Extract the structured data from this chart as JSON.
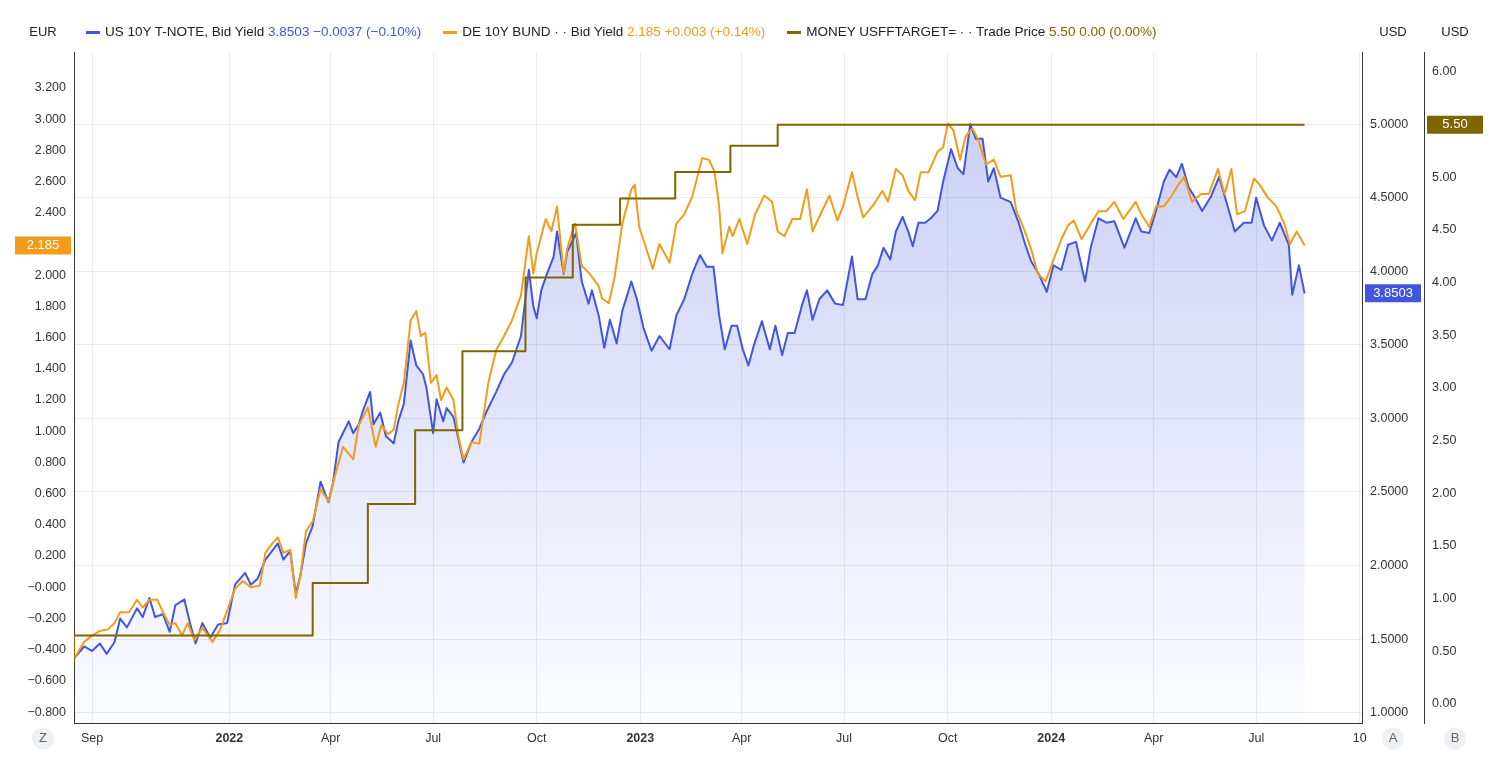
{
  "chart_data": {
    "type": "line",
    "ylabel": "EUR",
    "y2label": "USD",
    "y3label": "USD",
    "legend": "top left",
    "grid": true,
    "annotations": [
      "3.8503 −0.0037 (−0.10%)",
      "2.185 +0.003 (+0.14%)",
      "5.50 0.00 (0.00%)",
      "Z",
      "A",
      "B",
      "3.8503",
      "2.185",
      "5.50"
    ],
    "xlim": [
      "2021-08-16",
      "2024-10-03"
    ],
    "xticks": [
      {
        "value": "2021-09-01",
        "label": "Sep"
      },
      {
        "value": "2022-01-01",
        "label": "2022"
      },
      {
        "value": "2022-04-01",
        "label": "Apr"
      },
      {
        "value": "2022-07-01",
        "label": "Jul"
      },
      {
        "value": "2022-10-01",
        "label": "Oct"
      },
      {
        "value": "2023-01-01",
        "label": "2023"
      },
      {
        "value": "2023-04-01",
        "label": "Apr"
      },
      {
        "value": "2023-07-01",
        "label": "Jul"
      },
      {
        "value": "2023-10-01",
        "label": "Oct"
      },
      {
        "value": "2024-01-01",
        "label": "2024"
      },
      {
        "value": "2024-04-01",
        "label": "Apr"
      },
      {
        "value": "2024-07-01",
        "label": "Jul"
      },
      {
        "value": "2024-10-01",
        "label": "10"
      }
    ],
    "ylim": [
      -0.87,
      3.43
    ],
    "yticks": [
      {
        "value": -0.8,
        "label": "−0.800"
      },
      {
        "value": -0.6,
        "label": "−0.600"
      },
      {
        "value": -0.4,
        "label": "−0.400"
      },
      {
        "value": -0.2,
        "label": "−0.200"
      },
      {
        "value": 0,
        "label": "−0.000"
      },
      {
        "value": 0.2,
        "label": "0.200"
      },
      {
        "value": 0.4,
        "label": "0.400"
      },
      {
        "value": 0.6,
        "label": "0.600"
      },
      {
        "value": 0.8,
        "label": "0.800"
      },
      {
        "value": 1,
        "label": "1.000"
      },
      {
        "value": 1.2,
        "label": "1.200"
      },
      {
        "value": 1.4,
        "label": "1.400"
      },
      {
        "value": 1.6,
        "label": "1.600"
      },
      {
        "value": 1.8,
        "label": "1.800"
      },
      {
        "value": 2,
        "label": "2.000"
      },
      {
        "value": 2.4,
        "label": "2.400"
      },
      {
        "value": 2.6,
        "label": "2.600"
      },
      {
        "value": 2.8,
        "label": "2.800"
      },
      {
        "value": 3,
        "label": "3.000"
      },
      {
        "value": 3.2,
        "label": "3.200"
      }
    ],
    "y2lim": [
      0.93,
      5.49
    ],
    "y2ticks": [
      {
        "value": 1,
        "label": "1.0000"
      },
      {
        "value": 1.5,
        "label": "1.5000"
      },
      {
        "value": 2,
        "label": "2.0000"
      },
      {
        "value": 2.5,
        "label": "2.5000"
      },
      {
        "value": 3,
        "label": "3.0000"
      },
      {
        "value": 3.5,
        "label": "3.5000"
      },
      {
        "value": 4,
        "label": "4.0000"
      },
      {
        "value": 4.5,
        "label": "4.5000"
      },
      {
        "value": 5,
        "label": "5.0000"
      }
    ],
    "y3lim": [
      -0.18,
      6.19
    ],
    "y3ticks": [
      {
        "value": 0,
        "label": "0.00"
      },
      {
        "value": 0.5,
        "label": "0.50"
      },
      {
        "value": 1,
        "label": "1.00"
      },
      {
        "value": 1.5,
        "label": "1.50"
      },
      {
        "value": 2,
        "label": "2.00"
      },
      {
        "value": 2.5,
        "label": "2.50"
      },
      {
        "value": 3,
        "label": "3.00"
      },
      {
        "value": 3.5,
        "label": "3.50"
      },
      {
        "value": 4,
        "label": "4.00"
      },
      {
        "value": 4.5,
        "label": "4.50"
      },
      {
        "value": 5,
        "label": "5.00"
      },
      {
        "value": 6,
        "label": "6.00"
      }
    ],
    "series": [
      {
        "name": "US 10Y T-NOTE, Bid Yield",
        "type": "area",
        "axis": "y2",
        "color": "#4255e0",
        "x": [
          "2021-08-16",
          "2021-08-25",
          "2021-09-01",
          "2021-09-08",
          "2021-09-14",
          "2021-09-21",
          "2021-09-26",
          "2021-10-02",
          "2021-10-11",
          "2021-10-16",
          "2021-10-22",
          "2021-10-27",
          "2021-11-03",
          "2021-11-09",
          "2021-11-14",
          "2021-11-22",
          "2021-11-27",
          "2021-12-02",
          "2021-12-08",
          "2021-12-15",
          "2021-12-22",
          "2021-12-30",
          "2022-01-06",
          "2022-01-15",
          "2022-01-20",
          "2022-01-26",
          "2022-02-02",
          "2022-02-08",
          "2022-02-13",
          "2022-02-18",
          "2022-02-24",
          "2022-03-01",
          "2022-03-05",
          "2022-03-10",
          "2022-03-16",
          "2022-03-19",
          "2022-03-23",
          "2022-03-30",
          "2022-04-03",
          "2022-04-08",
          "2022-04-17",
          "2022-04-21",
          "2022-04-26",
          "2022-04-30",
          "2022-05-06",
          "2022-05-09",
          "2022-05-15",
          "2022-05-20",
          "2022-05-27",
          "2022-05-31",
          "2022-06-05",
          "2022-06-11",
          "2022-06-16",
          "2022-06-22",
          "2022-06-25",
          "2022-07-01",
          "2022-07-04",
          "2022-07-10",
          "2022-07-13",
          "2022-07-19",
          "2022-07-24",
          "2022-07-28",
          "2022-08-04",
          "2022-08-11",
          "2022-08-17",
          "2022-08-26",
          "2022-09-02",
          "2022-09-09",
          "2022-09-17",
          "2022-09-24",
          "2022-09-28",
          "2022-10-01",
          "2022-10-05",
          "2022-10-10",
          "2022-10-16",
          "2022-10-19",
          "2022-10-25",
          "2022-10-28",
          "2022-11-05",
          "2022-11-10",
          "2022-11-16",
          "2022-11-19",
          "2022-11-25",
          "2022-11-30",
          "2022-12-05",
          "2022-12-11",
          "2022-12-16",
          "2022-12-24",
          "2022-12-29",
          "2023-01-04",
          "2023-01-11",
          "2023-01-18",
          "2023-01-27",
          "2023-02-02",
          "2023-02-09",
          "2023-02-16",
          "2023-02-23",
          "2023-03-01",
          "2023-03-03",
          "2023-03-07",
          "2023-03-12",
          "2023-03-17",
          "2023-03-23",
          "2023-03-28",
          "2023-04-02",
          "2023-04-07",
          "2023-04-12",
          "2023-04-19",
          "2023-04-26",
          "2023-05-01",
          "2023-05-07",
          "2023-05-12",
          "2023-05-18",
          "2023-05-25",
          "2023-05-29",
          "2023-06-03",
          "2023-06-09",
          "2023-06-16",
          "2023-06-23",
          "2023-06-30",
          "2023-07-08",
          "2023-07-13",
          "2023-07-20",
          "2023-07-26",
          "2023-07-31",
          "2023-08-05",
          "2023-08-11",
          "2023-08-16",
          "2023-08-22",
          "2023-08-27",
          "2023-08-31",
          "2023-09-05",
          "2023-09-11",
          "2023-09-16",
          "2023-09-22",
          "2023-09-27",
          "2023-10-04",
          "2023-10-10",
          "2023-10-15",
          "2023-10-21",
          "2023-10-26",
          "2023-11-01",
          "2023-11-06",
          "2023-11-11",
          "2023-11-17",
          "2023-11-26",
          "2023-12-03",
          "2023-12-09",
          "2023-12-14",
          "2023-12-21",
          "2023-12-28",
          "2024-01-03",
          "2024-01-10",
          "2024-01-16",
          "2024-01-23",
          "2024-01-31",
          "2024-02-05",
          "2024-02-12",
          "2024-02-19",
          "2024-02-26",
          "2024-03-06",
          "2024-03-16",
          "2024-03-21",
          "2024-03-28",
          "2024-04-03",
          "2024-04-10",
          "2024-04-15",
          "2024-04-21",
          "2024-04-26",
          "2024-05-02",
          "2024-05-07",
          "2024-05-14",
          "2024-05-22",
          "2024-05-29",
          "2024-06-05",
          "2024-06-12",
          "2024-06-20",
          "2024-06-27",
          "2024-07-01",
          "2024-07-08",
          "2024-07-15",
          "2024-07-22",
          "2024-07-30",
          "2024-08-02",
          "2024-08-08",
          "2024-08-13"
        ],
        "values": [
          1.37,
          1.45,
          1.42,
          1.47,
          1.4,
          1.48,
          1.64,
          1.58,
          1.71,
          1.65,
          1.78,
          1.65,
          1.67,
          1.55,
          1.73,
          1.77,
          1.61,
          1.47,
          1.61,
          1.51,
          1.6,
          1.61,
          1.87,
          1.95,
          1.87,
          1.91,
          2.04,
          2.1,
          2.15,
          2.04,
          2.1,
          1.81,
          1.93,
          2.15,
          2.27,
          2.4,
          2.57,
          2.43,
          2.56,
          2.84,
          2.98,
          2.9,
          2.96,
          3.06,
          3.18,
          2.96,
          3.04,
          2.88,
          2.83,
          2.98,
          3.1,
          3.53,
          3.36,
          3.3,
          3.21,
          2.9,
          3.13,
          2.98,
          3.07,
          3.01,
          2.84,
          2.7,
          2.84,
          2.93,
          3.04,
          3.18,
          3.3,
          3.38,
          3.56,
          4.01,
          3.76,
          3.68,
          3.87,
          3.98,
          4.1,
          4.27,
          3.98,
          4.13,
          4.26,
          3.93,
          3.78,
          3.87,
          3.7,
          3.48,
          3.67,
          3.51,
          3.73,
          3.93,
          3.81,
          3.61,
          3.46,
          3.56,
          3.47,
          3.7,
          3.81,
          3.98,
          4.11,
          4.03,
          4.03,
          4.03,
          3.7,
          3.47,
          3.63,
          3.63,
          3.47,
          3.36,
          3.5,
          3.66,
          3.47,
          3.63,
          3.43,
          3.58,
          3.58,
          3.78,
          3.87,
          3.67,
          3.81,
          3.87,
          3.78,
          3.77,
          4.1,
          3.81,
          3.81,
          3.98,
          4.04,
          4.16,
          4.08,
          4.27,
          4.37,
          4.27,
          4.17,
          4.33,
          4.33,
          4.36,
          4.41,
          4.61,
          4.83,
          4.7,
          4.66,
          5.0,
          4.9,
          4.9,
          4.61,
          4.7,
          4.5,
          4.47,
          4.33,
          4.18,
          4.07,
          3.98,
          3.86,
          4.04,
          4.01,
          4.18,
          4.2,
          3.93,
          4.16,
          4.36,
          4.33,
          4.34,
          4.16,
          4.36,
          4.27,
          4.26,
          4.41,
          4.61,
          4.69,
          4.64,
          4.73,
          4.57,
          4.51,
          4.41,
          4.51,
          4.64,
          4.46,
          4.27,
          4.33,
          4.33,
          4.5,
          4.31,
          4.21,
          4.33,
          4.18,
          3.84,
          4.04,
          3.85
        ]
      },
      {
        "name": "DE 10Y BUND · · Bid Yield",
        "color": "#f19c1a",
        "x": [
          "2021-08-16",
          "2021-08-25",
          "2021-09-01",
          "2021-09-08",
          "2021-09-15",
          "2021-09-21",
          "2021-09-26",
          "2021-10-04",
          "2021-10-11",
          "2021-10-16",
          "2021-10-22",
          "2021-10-29",
          "2021-11-03",
          "2021-11-09",
          "2021-11-14",
          "2021-11-20",
          "2021-11-25",
          "2021-12-01",
          "2021-12-08",
          "2021-12-17",
          "2021-12-24",
          "2021-12-31",
          "2022-01-06",
          "2022-01-13",
          "2022-01-20",
          "2022-01-28",
          "2022-02-02",
          "2022-02-08",
          "2022-02-13",
          "2022-02-18",
          "2022-02-24",
          "2022-03-01",
          "2022-03-05",
          "2022-03-10",
          "2022-03-16",
          "2022-03-23",
          "2022-03-30",
          "2022-04-05",
          "2022-04-12",
          "2022-04-21",
          "2022-04-26",
          "2022-05-04",
          "2022-05-11",
          "2022-05-16",
          "2022-05-22",
          "2022-05-27",
          "2022-05-31",
          "2022-06-05",
          "2022-06-11",
          "2022-06-16",
          "2022-06-20",
          "2022-06-24",
          "2022-06-29",
          "2022-07-04",
          "2022-07-08",
          "2022-07-13",
          "2022-07-19",
          "2022-07-23",
          "2022-07-28",
          "2022-08-04",
          "2022-08-11",
          "2022-08-19",
          "2022-08-26",
          "2022-09-02",
          "2022-09-09",
          "2022-09-17",
          "2022-09-24",
          "2022-09-28",
          "2022-10-01",
          "2022-10-09",
          "2022-10-14",
          "2022-10-19",
          "2022-10-25",
          "2022-10-28",
          "2022-11-04",
          "2022-11-10",
          "2022-11-17",
          "2022-11-25",
          "2022-11-28",
          "2022-12-04",
          "2022-12-09",
          "2022-12-16",
          "2022-12-24",
          "2022-12-27",
          "2022-12-31",
          "2023-01-05",
          "2023-01-12",
          "2023-01-18",
          "2023-01-27",
          "2023-02-02",
          "2023-02-09",
          "2023-02-16",
          "2023-02-25",
          "2023-03-03",
          "2023-03-08",
          "2023-03-12",
          "2023-03-15",
          "2023-03-21",
          "2023-03-24",
          "2023-03-30",
          "2023-04-06",
          "2023-04-13",
          "2023-04-21",
          "2023-04-28",
          "2023-05-03",
          "2023-05-09",
          "2023-05-16",
          "2023-05-23",
          "2023-05-29",
          "2023-06-03",
          "2023-06-10",
          "2023-06-18",
          "2023-06-25",
          "2023-06-30",
          "2023-07-08",
          "2023-07-13",
          "2023-07-18",
          "2023-07-27",
          "2023-08-04",
          "2023-08-09",
          "2023-08-16",
          "2023-08-22",
          "2023-08-27",
          "2023-09-02",
          "2023-09-07",
          "2023-09-14",
          "2023-09-22",
          "2023-09-27",
          "2023-10-01",
          "2023-10-06",
          "2023-10-12",
          "2023-10-17",
          "2023-10-23",
          "2023-10-28",
          "2023-11-04",
          "2023-11-11",
          "2023-11-17",
          "2023-11-26",
          "2023-12-01",
          "2023-12-07",
          "2023-12-14",
          "2023-12-20",
          "2023-12-27",
          "2024-01-03",
          "2024-01-10",
          "2024-01-16",
          "2024-01-21",
          "2024-01-28",
          "2024-02-05",
          "2024-02-12",
          "2024-02-19",
          "2024-02-26",
          "2024-03-05",
          "2024-03-16",
          "2024-03-21",
          "2024-03-28",
          "2024-04-03",
          "2024-04-10",
          "2024-04-17",
          "2024-04-23",
          "2024-04-28",
          "2024-05-05",
          "2024-05-13",
          "2024-05-20",
          "2024-05-28",
          "2024-06-03",
          "2024-06-09",
          "2024-06-14",
          "2024-06-21",
          "2024-06-29",
          "2024-07-04",
          "2024-07-11",
          "2024-07-19",
          "2024-07-26",
          "2024-07-31",
          "2024-08-06",
          "2024-08-13"
        ],
        "values": [
          -0.46,
          -0.35,
          -0.31,
          -0.28,
          -0.27,
          -0.23,
          -0.16,
          -0.16,
          -0.08,
          -0.13,
          -0.08,
          -0.08,
          -0.16,
          -0.24,
          -0.23,
          -0.31,
          -0.23,
          -0.34,
          -0.26,
          -0.35,
          -0.27,
          -0.13,
          -0.01,
          0.04,
          0.0,
          0.01,
          0.22,
          0.28,
          0.32,
          0.22,
          0.24,
          -0.07,
          0.07,
          0.36,
          0.42,
          0.63,
          0.55,
          0.72,
          0.9,
          0.82,
          1.04,
          1.15,
          0.9,
          1.04,
          0.98,
          1.01,
          1.17,
          1.31,
          1.71,
          1.77,
          1.61,
          1.63,
          1.31,
          1.36,
          1.2,
          1.28,
          1.2,
          0.98,
          0.82,
          0.93,
          0.92,
          1.31,
          1.52,
          1.61,
          1.71,
          1.87,
          2.25,
          2.01,
          2.14,
          2.36,
          2.28,
          2.44,
          2.01,
          2.17,
          2.33,
          2.06,
          2.01,
          1.93,
          1.85,
          1.82,
          1.98,
          2.33,
          2.55,
          2.58,
          2.31,
          2.2,
          2.04,
          2.2,
          2.08,
          2.33,
          2.39,
          2.5,
          2.75,
          2.74,
          2.66,
          2.44,
          2.14,
          2.31,
          2.25,
          2.36,
          2.2,
          2.39,
          2.51,
          2.47,
          2.28,
          2.25,
          2.36,
          2.36,
          2.55,
          2.28,
          2.39,
          2.51,
          2.35,
          2.44,
          2.66,
          2.5,
          2.37,
          2.45,
          2.54,
          2.47,
          2.68,
          2.64,
          2.54,
          2.48,
          2.66,
          2.66,
          2.79,
          2.82,
          2.97,
          2.93,
          2.74,
          2.89,
          2.94,
          2.87,
          2.71,
          2.74,
          2.63,
          2.64,
          2.41,
          2.31,
          2.17,
          2.01,
          1.96,
          2.1,
          2.23,
          2.32,
          2.35,
          2.23,
          2.33,
          2.41,
          2.41,
          2.47,
          2.36,
          2.47,
          2.39,
          2.31,
          2.44,
          2.44,
          2.51,
          2.58,
          2.63,
          2.47,
          2.52,
          2.52,
          2.68,
          2.52,
          2.68,
          2.39,
          2.41,
          2.62,
          2.58,
          2.5,
          2.44,
          2.33,
          2.2,
          2.28,
          2.19
        ]
      },
      {
        "name": "MONEY USFFTARGET= · · Trade Price",
        "type": "step",
        "axis": "y3",
        "color": "#7d6500",
        "x": [
          "2021-08-16",
          "2022-03-16",
          "2022-05-04",
          "2022-06-15",
          "2022-07-27",
          "2022-09-21",
          "2022-11-02",
          "2022-12-14",
          "2023-02-01",
          "2023-03-22",
          "2023-05-03",
          "2023-07-26",
          "2024-08-13"
        ],
        "values": [
          0.4,
          0.65,
          1.15,
          1.9,
          2.6,
          3.35,
          4.05,
          4.55,
          4.8,
          5.05,
          5.3,
          5.5,
          5.5
        ]
      }
    ]
  }
}
